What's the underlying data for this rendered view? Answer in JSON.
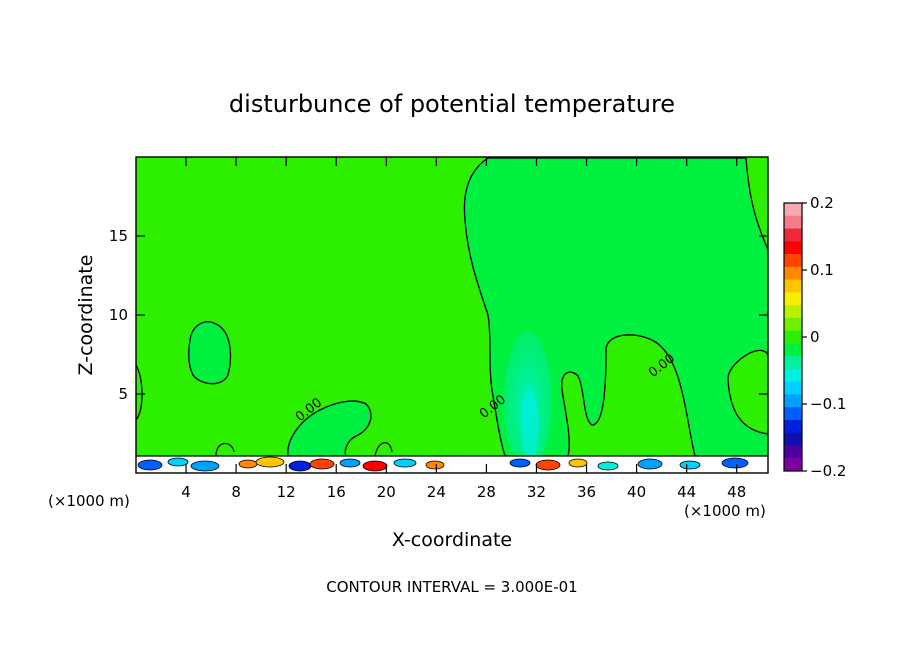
{
  "chart_data": {
    "type": "heatmap",
    "title": "disturbunce of potential temperature",
    "xlabel": "X-coordinate",
    "ylabel": "Z-coordinate",
    "x_unit": "(×1000 m)",
    "x_unit_right": "(×1000 m)",
    "xlim": [
      0,
      50.5
    ],
    "ylim": [
      0,
      20
    ],
    "x_ticks": [
      "4",
      "8",
      "12",
      "16",
      "20",
      "24",
      "28",
      "32",
      "36",
      "40",
      "44",
      "48"
    ],
    "x_tick_values": [
      4,
      8,
      12,
      16,
      20,
      24,
      28,
      32,
      36,
      40,
      44,
      48
    ],
    "y_ticks": [
      "5",
      "10",
      "15"
    ],
    "y_tick_values": [
      5,
      10,
      15
    ],
    "contour_interval": "CONTOUR INTERVAL = 3.000E-01",
    "contour_labels": [
      {
        "text": "0.00",
        "x": 14.0,
        "z": 3.8
      },
      {
        "text": "0.00",
        "x": 28.7,
        "z": 4.0
      },
      {
        "text": "0.00",
        "x": 42.2,
        "z": 6.6
      }
    ],
    "colorbar": {
      "min": -0.2,
      "max": 0.2,
      "tick_labels": [
        "0.2",
        "0.1",
        "0",
        "−0.1",
        "−0.2"
      ],
      "tick_values": [
        0.2,
        0.1,
        0.0,
        -0.1,
        -0.2
      ],
      "colors": [
        "#f5aab0",
        "#f57a8a",
        "#f0283c",
        "#ff0000",
        "#ff4400",
        "#ff8800",
        "#ffc400",
        "#f5f000",
        "#b8f000",
        "#6ef000",
        "#2cf000",
        "#00f040",
        "#00f0a0",
        "#00f0e0",
        "#00d0ff",
        "#00a0ff",
        "#0060ff",
        "#0020e0",
        "#1010b0",
        "#5000a0",
        "#8000a0"
      ]
    },
    "field": {
      "background_value": 0.0,
      "background_color": "#2cf000",
      "features": [
        {
          "name": "cool-plume",
          "x_center": 30.8,
          "z_center": 4.5,
          "min_value": -0.06
        },
        {
          "name": "surface-turbulent-layer",
          "z_top": 1.0,
          "value_range": [
            -0.2,
            0.2
          ]
        }
      ]
    },
    "grid": false,
    "legend": "colorbar-right"
  }
}
